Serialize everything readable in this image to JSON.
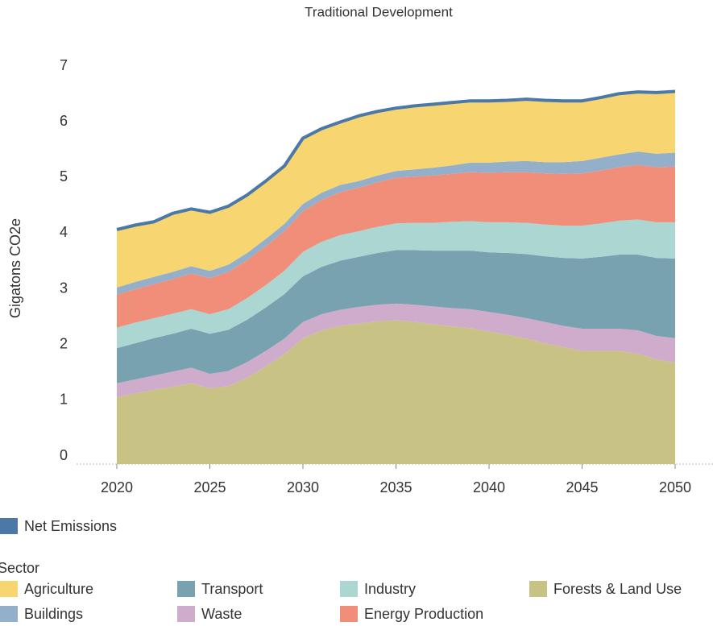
{
  "chart_data": {
    "type": "stacked-area",
    "title": "Traditional Development",
    "y_label": "Gigatons CO2e",
    "x": [
      2020,
      2021,
      2022,
      2023,
      2024,
      2025,
      2026,
      2027,
      2028,
      2029,
      2030,
      2031,
      2032,
      2033,
      2034,
      2035,
      2036,
      2037,
      2038,
      2039,
      2040,
      2041,
      2042,
      2043,
      2044,
      2045,
      2046,
      2047,
      2048,
      2049,
      2050
    ],
    "xlim": [
      2020,
      2050
    ],
    "xticks": [
      2020,
      2025,
      2030,
      2035,
      2040,
      2045,
      2050
    ],
    "ylim": [
      0,
      7
    ],
    "yticks": [
      0,
      1,
      2,
      3,
      4,
      5,
      6,
      7
    ],
    "legend_title": "Sector",
    "series": [
      {
        "name": "Agriculture",
        "color": "#f7d570",
        "values": [
          1.04,
          1.02,
          0.99,
          1.05,
          1.03,
          1.05,
          1.05,
          1.04,
          1.04,
          1.04,
          1.18,
          1.15,
          1.13,
          1.17,
          1.15,
          1.13,
          1.14,
          1.14,
          1.13,
          1.11,
          1.11,
          1.1,
          1.11,
          1.11,
          1.1,
          1.08,
          1.08,
          1.09,
          1.07,
          1.1,
          1.1
        ]
      },
      {
        "name": "Buildings",
        "color": "#94afc9",
        "values": [
          0.13,
          0.13,
          0.13,
          0.13,
          0.13,
          0.13,
          0.13,
          0.13,
          0.13,
          0.13,
          0.13,
          0.13,
          0.13,
          0.12,
          0.12,
          0.12,
          0.13,
          0.14,
          0.15,
          0.17,
          0.18,
          0.19,
          0.2,
          0.2,
          0.21,
          0.22,
          0.23,
          0.23,
          0.24,
          0.24,
          0.25
        ]
      },
      {
        "name": "Energy Production",
        "color": "#f08e79",
        "values": [
          0.59,
          0.6,
          0.61,
          0.62,
          0.64,
          0.65,
          0.67,
          0.68,
          0.7,
          0.71,
          0.73,
          0.75,
          0.77,
          0.78,
          0.8,
          0.82,
          0.83,
          0.85,
          0.86,
          0.88,
          0.89,
          0.9,
          0.91,
          0.92,
          0.93,
          0.94,
          0.95,
          0.96,
          0.98,
          0.99,
          1.0
        ]
      },
      {
        "name": "Industry",
        "color": "#acd6d1",
        "values": [
          0.37,
          0.37,
          0.36,
          0.36,
          0.35,
          0.35,
          0.37,
          0.39,
          0.4,
          0.42,
          0.44,
          0.45,
          0.46,
          0.46,
          0.47,
          0.48,
          0.49,
          0.5,
          0.52,
          0.53,
          0.54,
          0.55,
          0.56,
          0.57,
          0.58,
          0.59,
          0.6,
          0.61,
          0.63,
          0.64,
          0.65
        ]
      },
      {
        "name": "Transport",
        "color": "#78a2b0",
        "values": [
          0.63,
          0.65,
          0.67,
          0.68,
          0.7,
          0.72,
          0.74,
          0.76,
          0.78,
          0.8,
          0.82,
          0.85,
          0.88,
          0.9,
          0.93,
          0.96,
          0.98,
          1.0,
          1.03,
          1.05,
          1.07,
          1.11,
          1.15,
          1.18,
          1.22,
          1.26,
          1.29,
          1.33,
          1.36,
          1.4,
          1.43
        ]
      },
      {
        "name": "Waste",
        "color": "#cfaccb",
        "values": [
          0.25,
          0.25,
          0.26,
          0.27,
          0.28,
          0.26,
          0.27,
          0.28,
          0.28,
          0.28,
          0.29,
          0.29,
          0.29,
          0.3,
          0.3,
          0.3,
          0.31,
          0.32,
          0.33,
          0.34,
          0.35,
          0.36,
          0.37,
          0.38,
          0.38,
          0.4,
          0.4,
          0.4,
          0.42,
          0.42,
          0.44
        ]
      },
      {
        "name": "Forests & Land Use",
        "color": "#c8c385",
        "values": [
          1.2,
          1.27,
          1.33,
          1.39,
          1.45,
          1.36,
          1.4,
          1.55,
          1.75,
          1.97,
          2.26,
          2.4,
          2.48,
          2.52,
          2.56,
          2.58,
          2.55,
          2.51,
          2.47,
          2.44,
          2.38,
          2.32,
          2.25,
          2.17,
          2.1,
          2.03,
          2.03,
          2.03,
          1.98,
          1.88,
          1.82
        ]
      }
    ],
    "net_emissions": {
      "name": "Net Emissions",
      "color": "#4c78a8",
      "values": [
        4.21,
        4.29,
        4.35,
        4.5,
        4.58,
        4.52,
        4.63,
        4.83,
        5.08,
        5.35,
        5.85,
        6.02,
        6.14,
        6.25,
        6.33,
        6.39,
        6.43,
        6.46,
        6.49,
        6.52,
        6.52,
        6.53,
        6.55,
        6.53,
        6.52,
        6.52,
        6.58,
        6.65,
        6.68,
        6.67,
        6.69
      ]
    }
  }
}
